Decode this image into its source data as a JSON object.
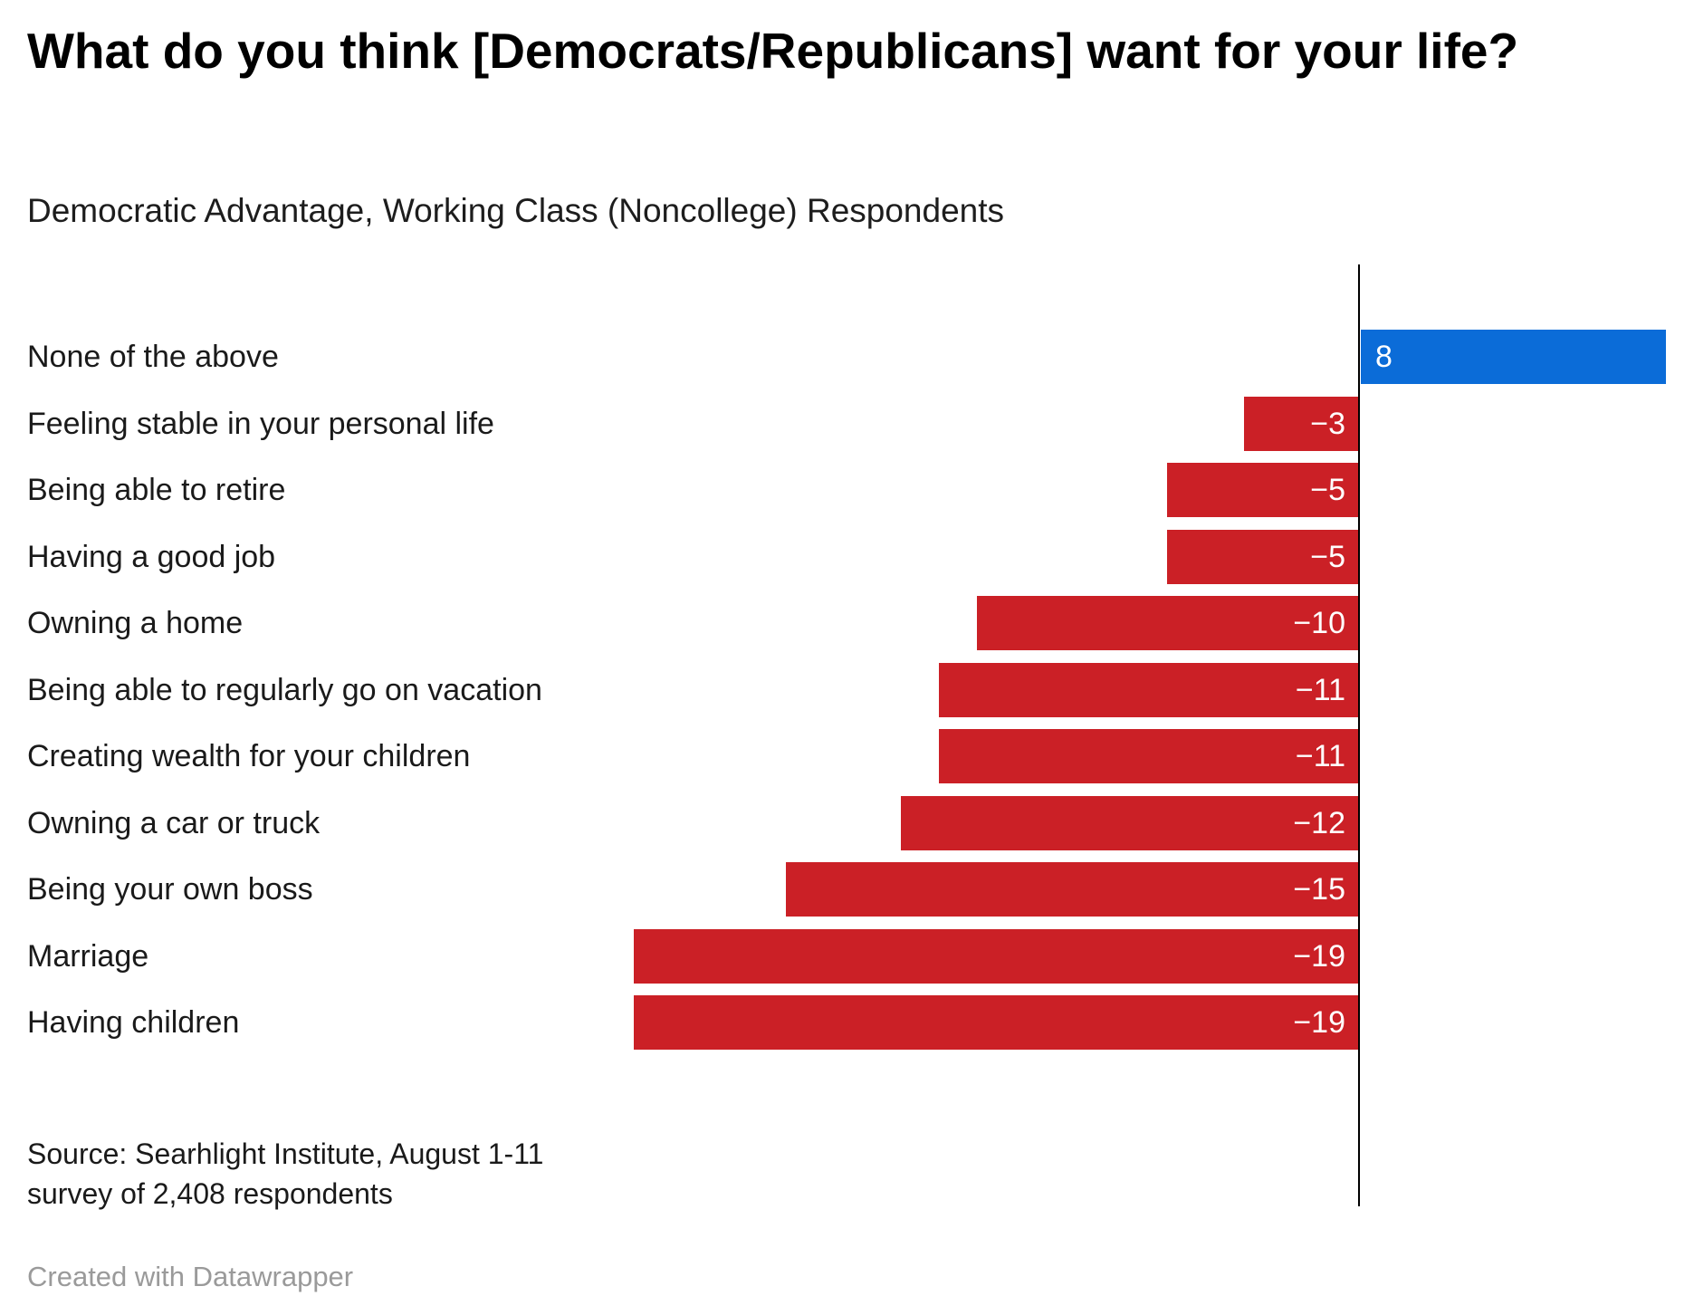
{
  "title": "What do you think [Democrats/Republicans] want for your life?",
  "subtitle": "Democratic Advantage, Working Class (Noncollege) Respondents",
  "source": "Source: Searhlight Institute, August 1-11 survey of 2,408 respondents",
  "footer": "Created with Datawrapper",
  "colors": {
    "positive_bar": "#0b6cd8",
    "negative_bar": "#cb2026",
    "axis": "#000000",
    "bar_label_text": "#ffffff",
    "category_text": "#1a1a1a",
    "footer_text": "#9a9a9a"
  },
  "chart_data": {
    "type": "bar",
    "orientation": "horizontal-diverging",
    "title": "What do you think [Democrats/Republicans] want for your life?",
    "subtitle": "Democratic Advantage, Working Class (Noncollege) Respondents",
    "categories": [
      "None of the above",
      "Feeling stable in your personal life",
      "Being able to retire",
      "Having a good job",
      "Owning a home",
      "Being able to regularly go on vacation",
      "Creating wealth for your children",
      "Owning a car or truck",
      "Being your own boss",
      "Marriage",
      "Having children"
    ],
    "values": [
      8,
      -3,
      -5,
      -5,
      -10,
      -11,
      -11,
      -12,
      -15,
      -19,
      -19
    ],
    "value_labels": [
      "8",
      "−3",
      "−5",
      "−5",
      "−10",
      "−11",
      "−11",
      "−12",
      "−15",
      "−19",
      "−19"
    ],
    "baseline_x": 0,
    "xlim": [
      -20,
      9
    ],
    "grid": "off",
    "legend": "none",
    "bar_label_position": "inside-end"
  }
}
